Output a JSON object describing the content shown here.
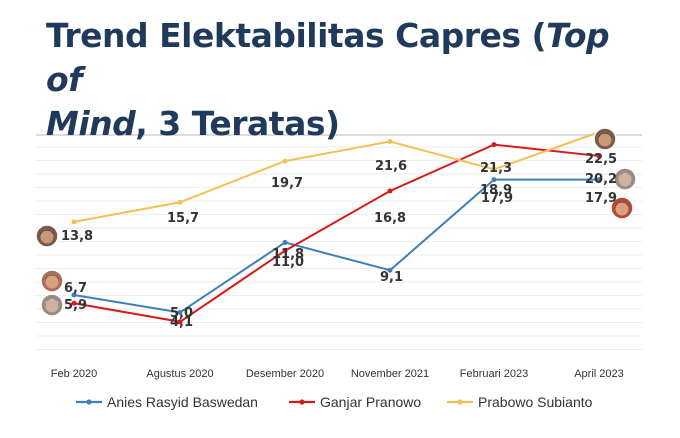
{
  "title": {
    "part1": "Trend Elektabilitas Capres (",
    "italic1": "Top of",
    "part2_italic": "Mind",
    "part2": ", 3 Teratas)"
  },
  "chart_data": {
    "type": "line",
    "categories": [
      "Feb 2020",
      "Agustus 2020",
      "Desember 2020",
      "November 2021",
      "Februari 2023",
      "April 2023"
    ],
    "series": [
      {
        "name": "Anies Rasyid Baswedan",
        "color": "#3e7fb8",
        "values": [
          6.7,
          5.0,
          11.8,
          9.1,
          17.9,
          17.9
        ],
        "labels": [
          "6,7",
          "5,0",
          "11,8",
          "9,1",
          "17,9",
          "17,9"
        ]
      },
      {
        "name": "Ganjar Pranowo",
        "color": "#d7191c",
        "values": [
          5.9,
          4.1,
          11.0,
          16.8,
          21.3,
          20.2
        ],
        "labels": [
          "5,9",
          "4,1",
          "11,0",
          "16,8",
          "21,3",
          "20,2"
        ]
      },
      {
        "name": "Prabowo Subianto",
        "color": "#f2c156",
        "values": [
          13.8,
          15.7,
          19.7,
          21.6,
          18.9,
          22.5
        ],
        "labels": [
          "13,8",
          "15,7",
          "19,7",
          "21,6",
          "18,9",
          "22,5"
        ]
      }
    ],
    "ylim": [
      0,
      26
    ],
    "grid": true,
    "legend": "bottom"
  }
}
